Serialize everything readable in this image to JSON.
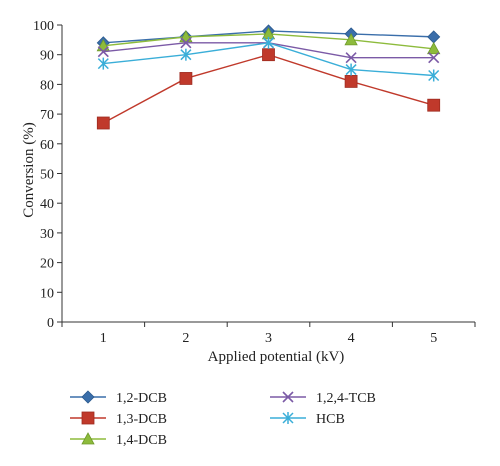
{
  "chart_data": {
    "type": "line",
    "title": "",
    "xlabel": "Applied potential (kV)",
    "ylabel": "Conversion (%)",
    "x": [
      1,
      2,
      3,
      4,
      5
    ],
    "xlim": [
      0.5,
      5.5
    ],
    "ylim": [
      0,
      100
    ],
    "yticks": [
      0,
      10,
      20,
      30,
      40,
      50,
      60,
      70,
      80,
      90,
      100
    ],
    "grid": false,
    "legend_position": "bottom",
    "series": [
      {
        "name": "1,2-DCB",
        "values": [
          94,
          96,
          98,
          97,
          96
        ],
        "color": "#3a6eaa",
        "marker": "diamond"
      },
      {
        "name": "1,3-DCB",
        "values": [
          67,
          82,
          90,
          81,
          73
        ],
        "color": "#c0392b",
        "marker": "square"
      },
      {
        "name": "1,4-DCB",
        "values": [
          93,
          96,
          97,
          95,
          92
        ],
        "color": "#8dbb3c",
        "marker": "triangle"
      },
      {
        "name": "1,2,4-TCB",
        "values": [
          91,
          94,
          94,
          89,
          89
        ],
        "color": "#7b5aa6",
        "marker": "x"
      },
      {
        "name": "HCB",
        "values": [
          87,
          90,
          94,
          85,
          83
        ],
        "color": "#3aaed8",
        "marker": "star"
      }
    ]
  }
}
